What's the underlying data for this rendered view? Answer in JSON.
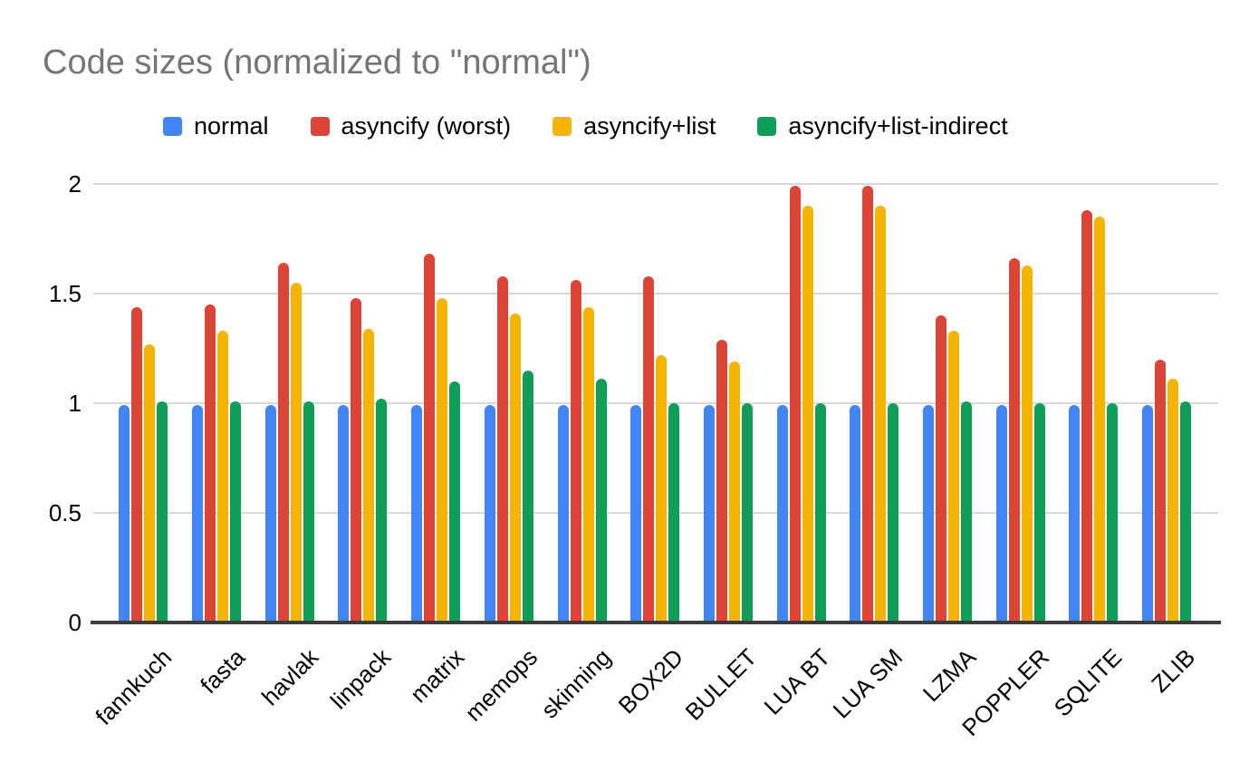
{
  "title": "Code sizes (normalized to \"normal\")",
  "legend": {
    "items": [
      {
        "label": "normal",
        "color": "#4285F4"
      },
      {
        "label": "asyncify (worst)",
        "color": "#DB4437"
      },
      {
        "label": "asyncify+list",
        "color": "#F4B400"
      },
      {
        "label": "asyncify+list-indirect",
        "color": "#0F9D58"
      }
    ]
  },
  "colors": {
    "background": "#ffffff",
    "title_text": "#757575",
    "axis_text": "#000000",
    "gridline": "#d9d9d9",
    "axis_line": "#3c3c3c"
  },
  "chart_data": {
    "type": "bar",
    "title": "Code sizes (normalized to \"normal\")",
    "categories": [
      "fannkuch",
      "fasta",
      "havlak",
      "linpack",
      "matrix",
      "memops",
      "skinning",
      "BOX2D",
      "BULLET",
      "LUA BT",
      "LUA SM",
      "LZMA",
      "POPPLER",
      "SQLITE",
      "ZLIB"
    ],
    "series": [
      {
        "name": "normal",
        "color": "#4285F4",
        "values": [
          0.99,
          0.99,
          0.99,
          0.99,
          0.99,
          0.99,
          0.99,
          0.99,
          0.99,
          0.99,
          0.99,
          0.99,
          0.99,
          0.99,
          0.99
        ]
      },
      {
        "name": "asyncify (worst)",
        "color": "#DB4437",
        "values": [
          1.44,
          1.45,
          1.64,
          1.48,
          1.68,
          1.58,
          1.56,
          1.58,
          1.29,
          1.99,
          1.99,
          1.4,
          1.66,
          1.88,
          1.2
        ]
      },
      {
        "name": "asyncify+list",
        "color": "#F4B400",
        "values": [
          1.27,
          1.33,
          1.55,
          1.34,
          1.48,
          1.41,
          1.44,
          1.22,
          1.19,
          1.9,
          1.9,
          1.33,
          1.63,
          1.85,
          1.11
        ]
      },
      {
        "name": "asyncify+list-indirect",
        "color": "#0F9D58",
        "values": [
          1.01,
          1.01,
          1.01,
          1.02,
          1.1,
          1.15,
          1.11,
          1.0,
          1.0,
          1.0,
          1.0,
          1.01,
          1.0,
          1.0,
          1.01
        ]
      }
    ],
    "xlabel": "",
    "ylabel": "",
    "yticks": [
      0,
      0.5,
      1,
      1.5,
      2
    ],
    "ylim": [
      0,
      2.08
    ],
    "grid": true,
    "legend_position": "top"
  }
}
